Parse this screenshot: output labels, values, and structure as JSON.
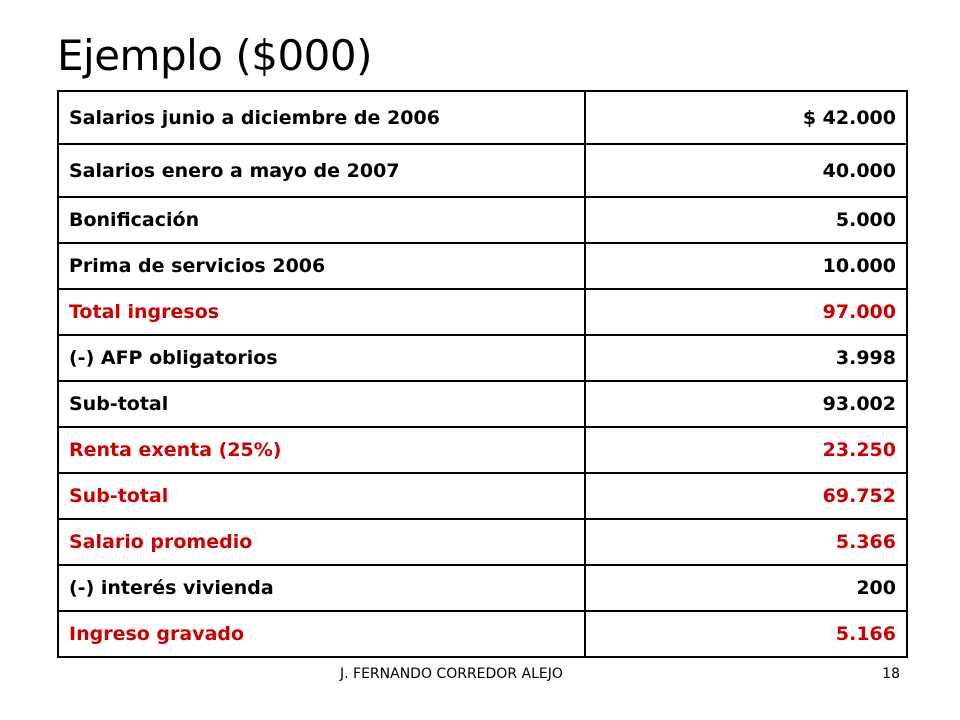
{
  "slide": {
    "title": "Ejemplo ($000)"
  },
  "table": {
    "rows": [
      {
        "label": "Salarios junio a diciembre de 2006",
        "value": "$  42.000",
        "highlight": false
      },
      {
        "label": "Salarios enero a mayo de 2007",
        "value": "40.000",
        "highlight": false
      },
      {
        "label": "Bonificación",
        "value": "5.000",
        "highlight": false
      },
      {
        "label": "Prima de servicios 2006",
        "value": "10.000",
        "highlight": false
      },
      {
        "label": "Total ingresos",
        "value": "97.000",
        "highlight": true
      },
      {
        "label": "(-) AFP obligatorios",
        "value": "3.998",
        "highlight": false
      },
      {
        "label": "Sub-total",
        "value": "93.002",
        "highlight": false
      },
      {
        "label": "Renta exenta (25%)",
        "value": "23.250",
        "highlight": true
      },
      {
        "label": "Sub-total",
        "value": "69.752",
        "highlight": true
      },
      {
        "label": "Salario promedio",
        "value": "5.366",
        "highlight": true
      },
      {
        "label": "(-) interés vivienda",
        "value": "200",
        "highlight": false
      },
      {
        "label": "Ingreso gravado",
        "value": "5.166",
        "highlight": true
      }
    ]
  },
  "footer": {
    "author": "J. FERNANDO CORREDOR ALEJO",
    "page_number": "18"
  },
  "colors": {
    "highlight_text": "#cc0000",
    "text": "#000000",
    "background": "#ffffff"
  }
}
